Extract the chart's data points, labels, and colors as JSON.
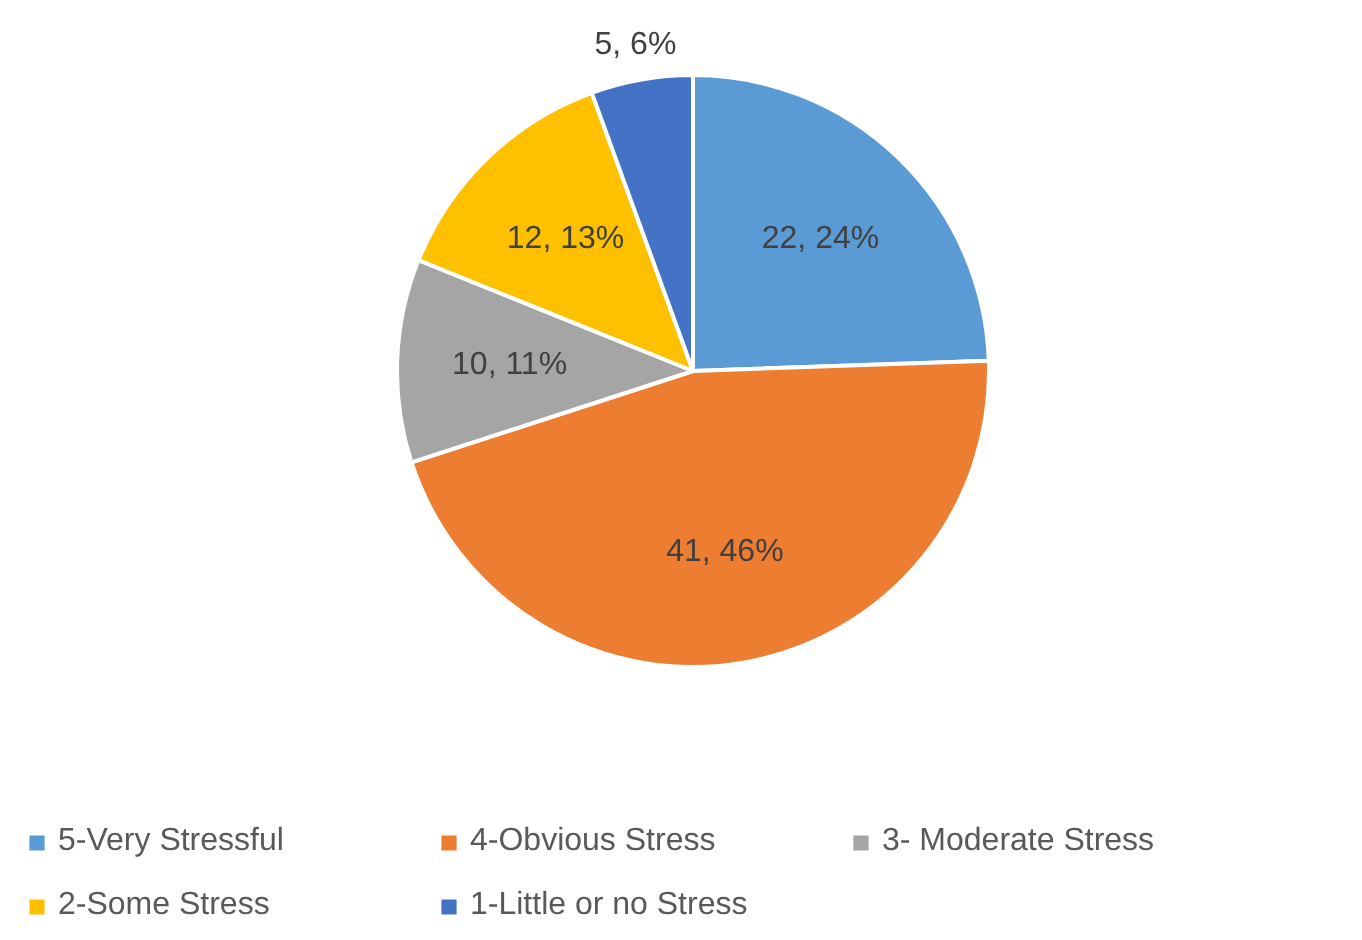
{
  "chart_data": {
    "type": "pie",
    "categories": [
      "5-Very Stressful",
      "4-Obvious Stress",
      "3- Moderate Stress",
      "2-Some Stress",
      "1-Little or no Stress"
    ],
    "values": [
      22,
      41,
      10,
      12,
      5
    ],
    "colors": [
      "#5b9bd5",
      "#ed7d31",
      "#a5a5a5",
      "#ffc000",
      "#4472c4"
    ],
    "value_labels": [
      "22, 24%",
      "41, 46%",
      "10, 11%",
      "12, 13%",
      "5, 6%"
    ],
    "legend": "bottom"
  }
}
